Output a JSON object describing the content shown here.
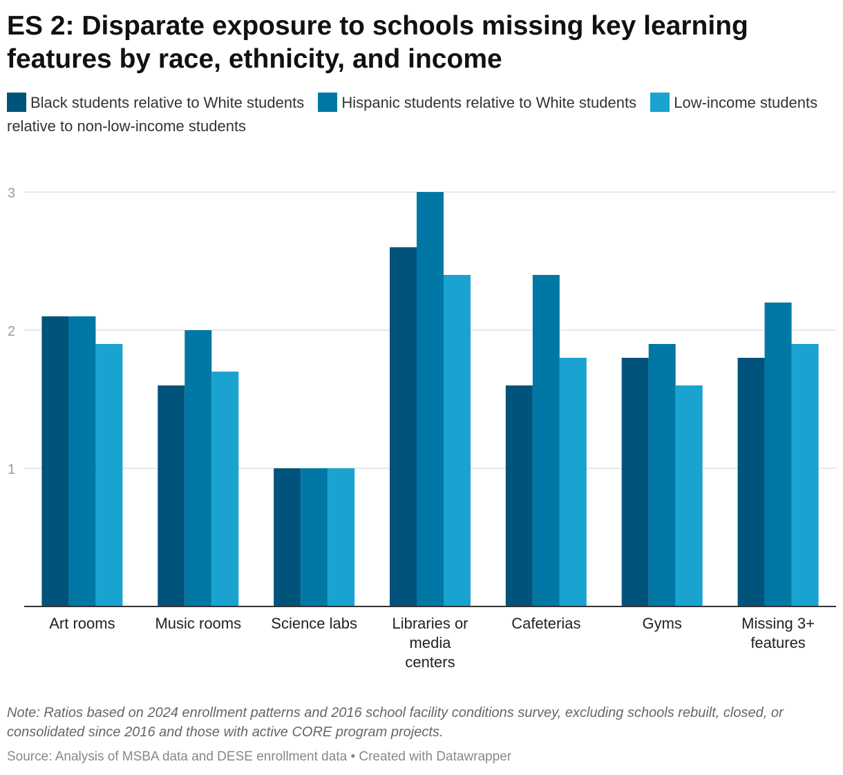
{
  "title": "ES 2: Disparate exposure to schools missing key learning features by race, ethnicity, and income",
  "legend": [
    {
      "label": "Black students relative to White students",
      "color": "#00537a"
    },
    {
      "label": "Hispanic students relative to White students",
      "color": "#0077a4"
    },
    {
      "label": "Low-income students relative to non-low-income students",
      "color": "#1aa2d0"
    }
  ],
  "chart_data": {
    "type": "bar",
    "title": "ES 2: Disparate exposure to schools missing key learning features by race, ethnicity, and income",
    "xlabel": "",
    "ylabel": "",
    "ylim": [
      0,
      3
    ],
    "yticks": [
      "1",
      "2",
      "3"
    ],
    "grid": true,
    "legend_position": "top",
    "categories": [
      [
        "Art rooms"
      ],
      [
        "Music rooms"
      ],
      [
        "Science labs"
      ],
      [
        "Libraries or",
        "media",
        "centers"
      ],
      [
        "Cafeterias"
      ],
      [
        "Gyms"
      ],
      [
        "Missing 3+",
        "features"
      ]
    ],
    "series": [
      {
        "name": "Black students relative to White students",
        "color": "#00537a",
        "values": [
          2.1,
          1.6,
          1.0,
          2.6,
          1.6,
          1.8,
          1.8
        ]
      },
      {
        "name": "Hispanic students relative to White students",
        "color": "#0077a4",
        "values": [
          2.1,
          2.0,
          1.0,
          3.0,
          2.4,
          1.9,
          2.2
        ]
      },
      {
        "name": "Low-income students relative to non-low-income students",
        "color": "#1aa2d0",
        "values": [
          1.9,
          1.7,
          1.0,
          2.4,
          1.8,
          1.6,
          1.9
        ]
      }
    ]
  },
  "note": "Note: Ratios based on 2024 enrollment patterns and 2016 school facility conditions survey, excluding schools rebuilt, closed, or consolidated since 2016 and those with active CORE program projects.",
  "source": "Source: Analysis of MSBA data and DESE enrollment data • Created with Datawrapper"
}
